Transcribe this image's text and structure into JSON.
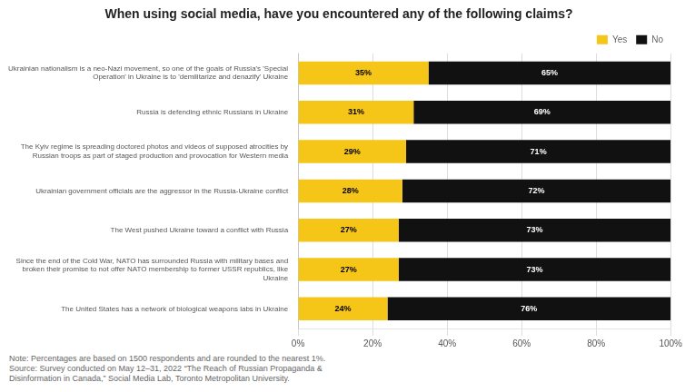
{
  "chart_data": {
    "type": "bar",
    "orientation": "horizontal",
    "stacked": true,
    "title": "When using social media, have you encountered any of the following claims?",
    "categories": [
      "Ukrainian nationalism is a neo-Nazi movement, so one of the goals of Russia's 'Special\nOperation' in Ukraine is to 'demilitarize and denazify' Ukraine",
      "Russia is defending ethnic Russians in Ukraine",
      "The Kyiv regime is spreading doctored photos and videos of supposed atrocities by\nRussian troops as part of staged production and provocation for Western media",
      "Ukrainian government officials are the aggressor in the Russia-Ukraine conflict",
      "The West pushed Ukraine toward a conflict with Russia",
      "Since the end of the Cold War, NATO has surrounded Russia with military bases and\nbroken their promise to not offer NATO membership to former USSR republics, like\nUkraine",
      "The United States has a network of biological weapons labs in Ukraine"
    ],
    "series": [
      {
        "name": "Yes",
        "color": "#F5C518",
        "values": [
          35,
          31,
          29,
          28,
          27,
          27,
          24
        ],
        "value_labels": [
          "35%",
          "31%",
          "29%",
          "28%",
          "27%",
          "27%",
          "24%"
        ]
      },
      {
        "name": "No",
        "color": "#111111",
        "values": [
          65,
          69,
          71,
          72,
          73,
          73,
          76
        ],
        "value_labels": [
          "65%",
          "69%",
          "71%",
          "72%",
          "73%",
          "73%",
          "76%"
        ]
      }
    ],
    "xlim": [
      0,
      100
    ],
    "xticks": [
      {
        "value": 0,
        "label": "0%"
      },
      {
        "value": 20,
        "label": "20%"
      },
      {
        "value": 40,
        "label": "40%"
      },
      {
        "value": 60,
        "label": "60%"
      },
      {
        "value": 80,
        "label": "80%"
      },
      {
        "value": 100,
        "label": "100%"
      }
    ],
    "grid": true,
    "legend": "upper right",
    "data_labels": true,
    "annotations": [
      "Note: Percentages are based on 1500 respondents and are rounded to the nearest 1%.",
      "Source: Survey conducted on May 12–31, 2022  “The Reach of Russian Propaganda &\nDisinformation in Canada,” Social Media Lab, Toronto Metropolitan University."
    ]
  }
}
